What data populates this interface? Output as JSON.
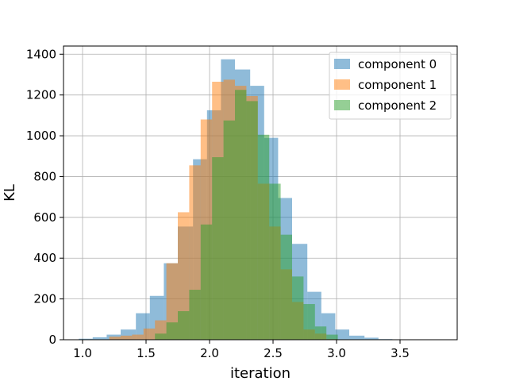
{
  "chart_data": {
    "type": "histogram",
    "title": "",
    "xlabel": "iteration",
    "ylabel": "KL",
    "xlim": [
      0.85,
      3.95
    ],
    "ylim": [
      0,
      1440
    ],
    "x_ticks": [
      1.0,
      1.5,
      2.0,
      2.5,
      3.0,
      3.5
    ],
    "x_tick_labels": [
      "1.0",
      "1.5",
      "2.0",
      "2.5",
      "3.0",
      "3.5"
    ],
    "y_ticks": [
      0,
      200,
      400,
      600,
      800,
      1000,
      1200,
      1400
    ],
    "y_tick_labels": [
      "0",
      "200",
      "400",
      "600",
      "800",
      "1000",
      "1200",
      "1400"
    ],
    "grid": true,
    "legend_position": "top-right",
    "series": [
      {
        "name": "component 0",
        "color": "#1f77b4",
        "alpha": 0.5,
        "bins": [
          [
            0.97,
            1.08,
            5
          ],
          [
            1.08,
            1.19,
            12
          ],
          [
            1.19,
            1.3,
            25
          ],
          [
            1.3,
            1.42,
            50
          ],
          [
            1.42,
            1.53,
            130
          ],
          [
            1.53,
            1.64,
            215
          ],
          [
            1.64,
            1.75,
            375
          ],
          [
            1.75,
            1.87,
            555
          ],
          [
            1.87,
            1.98,
            885
          ],
          [
            1.98,
            2.09,
            1125
          ],
          [
            2.09,
            2.2,
            1375
          ],
          [
            2.2,
            2.32,
            1325
          ],
          [
            2.32,
            2.43,
            1245
          ],
          [
            2.43,
            2.54,
            990
          ],
          [
            2.54,
            2.65,
            695
          ],
          [
            2.65,
            2.77,
            470
          ],
          [
            2.77,
            2.88,
            235
          ],
          [
            2.88,
            2.99,
            130
          ],
          [
            2.99,
            3.1,
            50
          ],
          [
            3.1,
            3.22,
            20
          ],
          [
            3.22,
            3.33,
            10
          ],
          [
            3.33,
            3.44,
            3
          ],
          [
            3.44,
            3.8,
            1
          ]
        ]
      },
      {
        "name": "component 1",
        "color": "#ff7f0e",
        "alpha": 0.5,
        "bins": [
          [
            1.21,
            1.3,
            15
          ],
          [
            1.3,
            1.39,
            20
          ],
          [
            1.39,
            1.48,
            25
          ],
          [
            1.48,
            1.57,
            55
          ],
          [
            1.57,
            1.66,
            95
          ],
          [
            1.66,
            1.75,
            375
          ],
          [
            1.75,
            1.84,
            625
          ],
          [
            1.84,
            1.93,
            855
          ],
          [
            1.93,
            2.02,
            1080
          ],
          [
            2.02,
            2.11,
            1265
          ],
          [
            2.11,
            2.2,
            1275
          ],
          [
            2.2,
            2.29,
            1245
          ],
          [
            2.29,
            2.38,
            1195
          ],
          [
            2.38,
            2.47,
            765
          ],
          [
            2.47,
            2.56,
            555
          ],
          [
            2.56,
            2.65,
            345
          ],
          [
            2.65,
            2.74,
            185
          ],
          [
            2.74,
            2.83,
            50
          ],
          [
            2.83,
            2.92,
            30
          ],
          [
            2.92,
            3.01,
            3
          ]
        ]
      },
      {
        "name": "component 2",
        "color": "#2ca02c",
        "alpha": 0.5,
        "bins": [
          [
            1.57,
            1.66,
            30
          ],
          [
            1.66,
            1.75,
            85
          ],
          [
            1.75,
            1.84,
            140
          ],
          [
            1.84,
            1.93,
            245
          ],
          [
            1.93,
            2.02,
            565
          ],
          [
            2.02,
            2.11,
            895
          ],
          [
            2.11,
            2.2,
            1075
          ],
          [
            2.2,
            2.29,
            1225
          ],
          [
            2.29,
            2.38,
            1170
          ],
          [
            2.38,
            2.47,
            1005
          ],
          [
            2.47,
            2.56,
            765
          ],
          [
            2.56,
            2.65,
            515
          ],
          [
            2.65,
            2.74,
            310
          ],
          [
            2.74,
            2.83,
            175
          ],
          [
            2.83,
            2.92,
            65
          ],
          [
            2.92,
            3.01,
            25
          ]
        ]
      }
    ]
  }
}
